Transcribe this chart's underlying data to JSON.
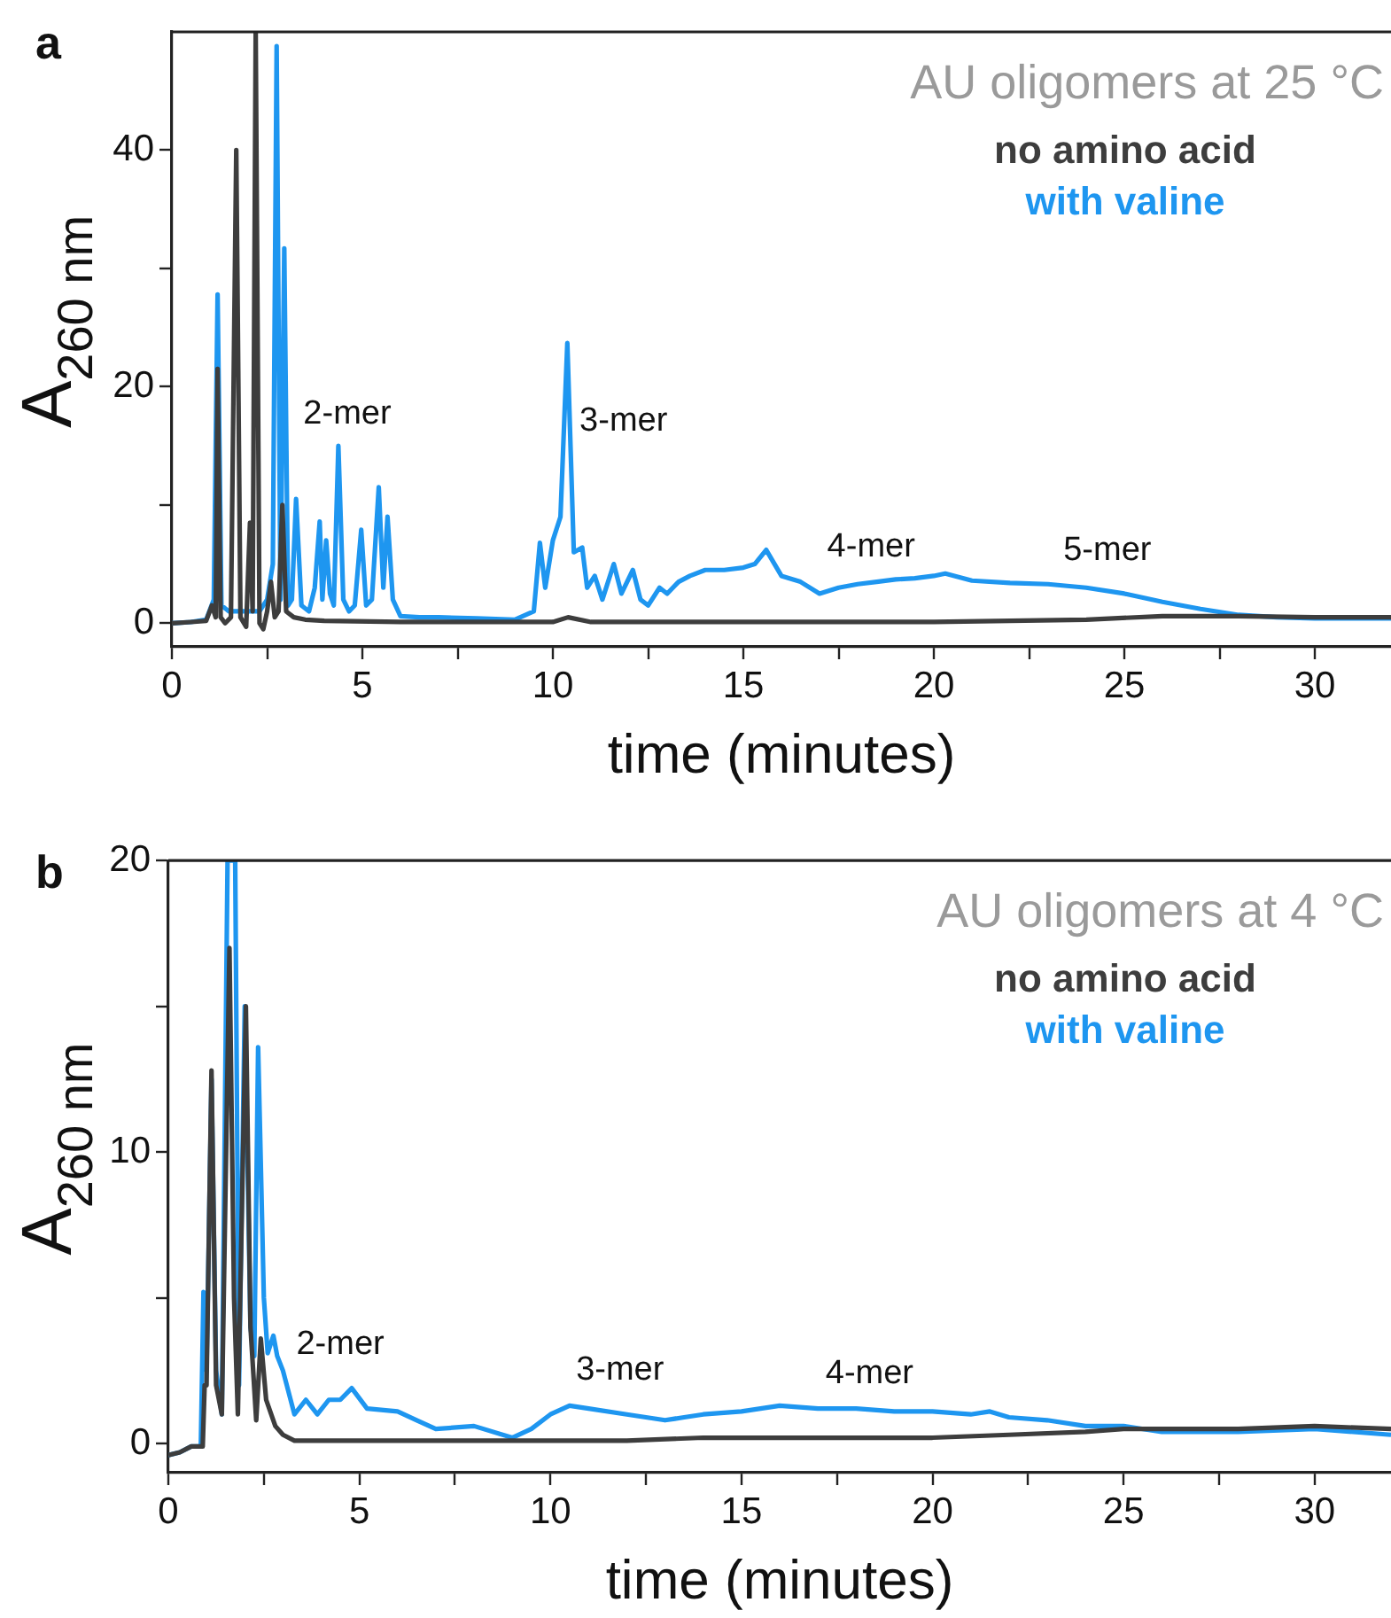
{
  "chart_data": [
    {
      "type": "line",
      "title": "AU oligomers at 25 °C",
      "xlabel": "time (minutes)",
      "ylabel": "A$_{260 nm}$",
      "xlim": [
        0,
        32
      ],
      "ylim": [
        -2,
        50
      ],
      "xticks": [
        0,
        {
          "value": 2.5,
          "label": null
        },
        5,
        {
          "value": 7.5,
          "label": null
        },
        10,
        {
          "value": 12.5,
          "label": null
        },
        15,
        {
          "value": 17.5,
          "label": null
        },
        20,
        {
          "value": 22.5,
          "label": null
        },
        25,
        {
          "value": 27.5,
          "label": null
        },
        30
      ],
      "yticks": [
        0,
        {
          "value": 10,
          "label": null
        },
        20,
        {
          "value": 30,
          "label": null
        },
        40
      ],
      "grid": false,
      "legend": "top right",
      "marker": "none",
      "line_style": "solid",
      "annotations": [
        "a",
        "2-mer",
        "3-mer",
        "4-mer",
        "5-mer"
      ],
      "series": [
        {
          "name": "no amino acid",
          "color": "#3d3d3d",
          "x": [
            0,
            0.5,
            0.9,
            1.05,
            1.15,
            1.2,
            1.28,
            1.4,
            1.55,
            1.69,
            1.8,
            1.95,
            2.05,
            2.12,
            2.2,
            2.3,
            2.4,
            2.5,
            2.6,
            2.7,
            2.8,
            2.9,
            3.0,
            3.2,
            3.5,
            4,
            6,
            8,
            10,
            10.4,
            11,
            15,
            20,
            24,
            26,
            28,
            30,
            32
          ],
          "values": [
            0,
            0.1,
            0.2,
            1.5,
            0.5,
            21.5,
            0.5,
            0,
            0.5,
            40,
            0.5,
            -0.3,
            8.5,
            1,
            50,
            0,
            -0.5,
            1,
            3.5,
            0.5,
            1,
            10,
            1,
            0.5,
            0.3,
            0.2,
            0.1,
            0.1,
            0.1,
            0.5,
            0.1,
            0.1,
            0.1,
            0.3,
            0.6,
            0.6,
            0.5,
            0.5
          ]
        },
        {
          "name": "with valine",
          "color": "#1e96f0",
          "x": [
            0,
            0.5,
            0.9,
            1.1,
            1.2,
            1.3,
            1.5,
            1.7,
            2.0,
            2.3,
            2.5,
            2.65,
            2.75,
            2.85,
            2.95,
            3.05,
            3.15,
            3.26,
            3.4,
            3.6,
            3.75,
            3.88,
            3.95,
            4.05,
            4.15,
            4.25,
            4.37,
            4.5,
            4.65,
            4.8,
            4.97,
            5.1,
            5.25,
            5.43,
            5.55,
            5.66,
            5.8,
            6,
            6.5,
            7,
            8,
            9,
            9.5,
            9.66,
            9.8,
            10,
            10.2,
            10.38,
            10.55,
            10.77,
            10.9,
            11.1,
            11.3,
            11.6,
            11.8,
            12.1,
            12.3,
            12.5,
            12.8,
            13,
            13.3,
            13.6,
            14,
            14.5,
            15,
            15.3,
            15.6,
            16,
            16.5,
            17,
            17.5,
            18,
            18.5,
            19,
            19.5,
            20,
            20.3,
            21,
            22,
            23,
            24,
            25,
            26,
            27,
            28,
            29,
            30,
            31,
            32
          ],
          "values": [
            0,
            0.1,
            0.3,
            2,
            27.8,
            1.5,
            1,
            1,
            1,
            1,
            2,
            5,
            48.8,
            2,
            31.7,
            1.5,
            2,
            10.5,
            1.5,
            1,
            3,
            8.6,
            2,
            7,
            2.5,
            1.5,
            15,
            2,
            1,
            1.5,
            7.9,
            1.5,
            2,
            11.5,
            3,
            9,
            2,
            0.6,
            0.5,
            0.5,
            0.4,
            0.3,
            1,
            6.8,
            3,
            7,
            9,
            23.7,
            6,
            6.4,
            3,
            4,
            2,
            5,
            2.5,
            4.5,
            2,
            1.5,
            3,
            2.5,
            3.5,
            4,
            4.5,
            4.5,
            4.7,
            5,
            6.2,
            4,
            3.5,
            2.5,
            3,
            3.3,
            3.5,
            3.7,
            3.8,
            4,
            4.2,
            3.6,
            3.4,
            3.3,
            3,
            2.5,
            1.8,
            1.2,
            0.7,
            0.5,
            0.4,
            0.4,
            0.4
          ]
        }
      ]
    },
    {
      "type": "line",
      "title": "AU oligomers at 4 °C",
      "xlabel": "time (minutes)",
      "ylabel": "A$_{260 nm}$",
      "xlim": [
        0,
        32
      ],
      "ylim": [
        -1,
        20
      ],
      "xticks": [
        0,
        {
          "value": 2.5,
          "label": null
        },
        5,
        {
          "value": 7.5,
          "label": null
        },
        10,
        {
          "value": 12.5,
          "label": null
        },
        15,
        {
          "value": 17.5,
          "label": null
        },
        20,
        {
          "value": 22.5,
          "label": null
        },
        25,
        {
          "value": 27.5,
          "label": null
        },
        30
      ],
      "yticks": [
        0,
        {
          "value": 5,
          "label": null
        },
        10,
        {
          "value": 15,
          "label": null
        },
        20
      ],
      "grid": false,
      "legend": "top right",
      "marker": "none",
      "line_style": "solid",
      "annotations": [
        "b",
        "2-mer",
        "3-mer",
        "4-mer"
      ],
      "series": [
        {
          "name": "no amino acid",
          "color": "#3d3d3d",
          "x": [
            0,
            0.3,
            0.6,
            0.9,
            0.95,
            1.0,
            1.13,
            1.25,
            1.4,
            1.6,
            1.72,
            1.82,
            2.03,
            2.15,
            2.3,
            2.42,
            2.56,
            2.8,
            3.0,
            3.3,
            4,
            6,
            8,
            10,
            12,
            14,
            16,
            18,
            20,
            22,
            24,
            25,
            26,
            28,
            30,
            32
          ],
          "values": [
            -0.4,
            -0.3,
            -0.1,
            -0.1,
            2,
            2,
            12.8,
            2,
            1,
            17,
            5,
            1,
            15,
            4,
            0.8,
            3.6,
            1.5,
            0.6,
            0.3,
            0.1,
            0.1,
            0.1,
            0.1,
            0.1,
            0.1,
            0.2,
            0.2,
            0.2,
            0.2,
            0.3,
            0.4,
            0.5,
            0.5,
            0.5,
            0.6,
            0.5
          ]
        },
        {
          "name": "with valine",
          "color": "#1e96f0",
          "x": [
            0,
            0.3,
            0.6,
            0.85,
            0.92,
            1.0,
            1.13,
            1.25,
            1.4,
            1.55,
            1.65,
            1.75,
            1.85,
            2.0,
            2.15,
            2.25,
            2.35,
            2.5,
            2.6,
            2.75,
            2.85,
            3.0,
            3.3,
            3.6,
            3.9,
            4.2,
            4.5,
            4.8,
            5.2,
            6,
            6.5,
            7,
            8,
            9,
            9.5,
            10,
            10.5,
            11,
            12,
            13,
            13.5,
            14,
            15,
            16,
            17,
            18,
            19,
            20,
            21,
            21.5,
            22,
            23,
            24,
            25,
            26,
            28,
            30,
            32
          ],
          "values": [
            -0.4,
            -0.3,
            -0.1,
            -0.1,
            5.2,
            2.5,
            12.5,
            2.5,
            1,
            20,
            20,
            20,
            2,
            15,
            4,
            3,
            13.6,
            5,
            3.1,
            3.7,
            3,
            2.5,
            1,
            1.5,
            1,
            1.5,
            1.5,
            1.9,
            1.2,
            1.1,
            0.8,
            0.5,
            0.6,
            0.2,
            0.5,
            1,
            1.3,
            1.2,
            1,
            0.8,
            0.9,
            1,
            1.1,
            1.3,
            1.2,
            1.2,
            1.1,
            1.1,
            1,
            1.1,
            0.9,
            0.8,
            0.6,
            0.6,
            0.4,
            0.4,
            0.5,
            0.3
          ]
        }
      ]
    }
  ]
}
